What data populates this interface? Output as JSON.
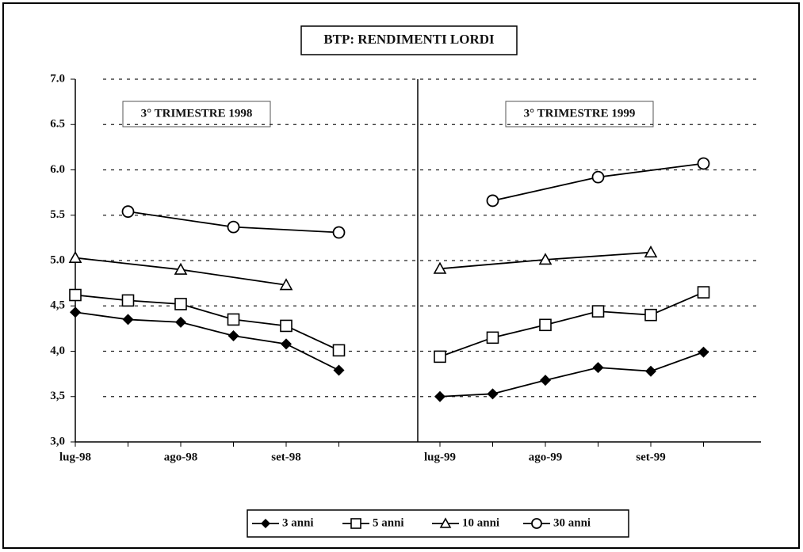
{
  "chart_data": [
    {
      "type": "line",
      "title": "BTP: RENDIMENTI LORDI",
      "annotation": "3° TRIMESTRE 1998",
      "categories": [
        "lug-98",
        null,
        "ago-98",
        null,
        "set-98",
        null
      ],
      "series": [
        {
          "name": "3 anni",
          "color": "#000000",
          "marker": "diamond",
          "values": [
            4.43,
            4.35,
            4.32,
            4.17,
            4.08,
            3.79
          ]
        },
        {
          "name": "5 anni",
          "color": "#000000",
          "marker": "square",
          "values": [
            4.62,
            4.56,
            4.52,
            4.35,
            4.28,
            4.01
          ]
        },
        {
          "name": "10 anni",
          "color": "#000000",
          "marker": "triangle",
          "values": [
            5.03,
            null,
            4.9,
            null,
            4.73,
            null
          ]
        },
        {
          "name": "30 anni",
          "color": "#000000",
          "marker": "circle",
          "values": [
            null,
            5.54,
            null,
            5.37,
            null,
            5.31
          ]
        }
      ],
      "ylim": [
        3,
        7
      ],
      "yticks": [
        {
          "value": 7,
          "label": "7.0"
        },
        {
          "value": 6.5,
          "label": "6.5"
        },
        {
          "value": 6,
          "label": "6.0"
        },
        {
          "value": 5.5,
          "label": "5.5"
        },
        {
          "value": 5,
          "label": "5.0"
        },
        {
          "value": 4.5,
          "label": "4,5"
        },
        {
          "value": 4,
          "label": "4,0"
        },
        {
          "value": 3.5,
          "label": "3,5"
        },
        {
          "value": 3,
          "label": "3,0"
        }
      ],
      "grid": true,
      "connect_gaps": true
    },
    {
      "type": "line",
      "annotation": "3° TRIMESTRE 1999",
      "categories": [
        "lug-99",
        null,
        "ago-99",
        null,
        "set-99",
        null
      ],
      "series": [
        {
          "color": "#000000",
          "marker": "diamond",
          "values": [
            3.5,
            3.53,
            3.68,
            3.82,
            3.78,
            3.99
          ]
        },
        {
          "color": "#000000",
          "marker": "square",
          "values": [
            3.94,
            4.15,
            4.29,
            4.44,
            4.4,
            4.65
          ]
        },
        {
          "color": "#000000",
          "marker": "triangle",
          "values": [
            4.91,
            null,
            5.01,
            null,
            5.09,
            null
          ]
        },
        {
          "color": "#000000",
          "marker": "circle",
          "values": [
            null,
            5.66,
            null,
            5.92,
            null,
            6.07
          ]
        }
      ],
      "connect_gaps": true
    }
  ]
}
